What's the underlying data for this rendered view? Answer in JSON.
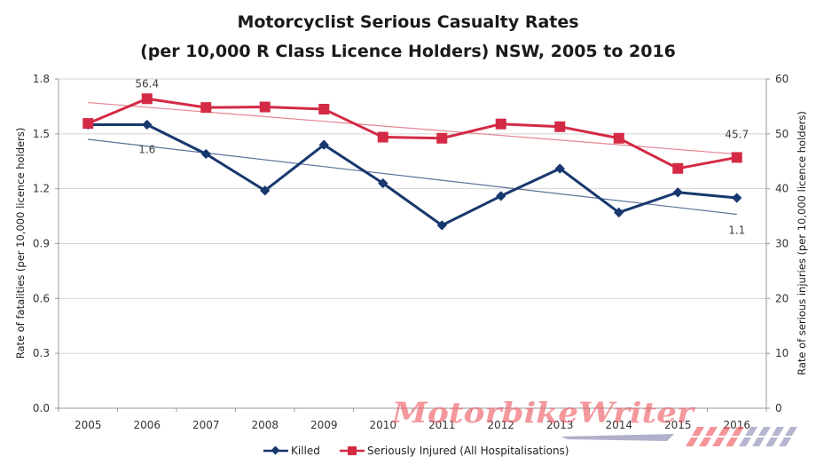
{
  "chart_data": {
    "type": "line",
    "title": "Motorcyclist Serious Casualty Rates",
    "subtitle": "(per 10,000 R Class Licence Holders) NSW, 2005 to 2016",
    "categories": [
      "2005",
      "2006",
      "2007",
      "2008",
      "2009",
      "2010",
      "2011",
      "2012",
      "2013",
      "2014",
      "2015",
      "2016"
    ],
    "y_left": {
      "label": "Rate of fatalities (per 10,000 licence holders)",
      "range": [
        0,
        1.8
      ],
      "ticks": [
        "0.0",
        "0.3",
        "0.6",
        "0.9",
        "1.2",
        "1.5",
        "1.8"
      ],
      "tick_values": [
        0,
        0.3,
        0.6,
        0.9,
        1.2,
        1.5,
        1.8
      ]
    },
    "y_right": {
      "label": "Rate of serious injuries (per 10,000 licence holders)",
      "range": [
        0,
        60
      ],
      "ticks": [
        "0",
        "10",
        "20",
        "30",
        "40",
        "50",
        "60"
      ],
      "tick_values": [
        0,
        10,
        20,
        30,
        40,
        50,
        60
      ]
    },
    "grid": true,
    "legend_position": "bottom",
    "series": [
      {
        "name": "Killed",
        "axis": "left",
        "color": "#17386e",
        "marker": "diamond",
        "values": [
          1.55,
          1.55,
          1.39,
          1.19,
          1.44,
          1.23,
          1.0,
          1.16,
          1.31,
          1.07,
          1.18,
          1.15
        ],
        "trendline": {
          "start": 1.47,
          "end": 1.06,
          "color": "#5a7299"
        }
      },
      {
        "name": "Seriously Injured (All Hospitalisations)",
        "axis": "right",
        "color": "#d42a45",
        "marker": "square",
        "values": [
          51.9,
          56.4,
          54.8,
          54.9,
          54.5,
          49.4,
          49.2,
          51.8,
          51.3,
          49.2,
          43.7,
          45.7
        ],
        "trendline": {
          "start": 55.7,
          "end": 46.3,
          "color": "#e58593"
        }
      }
    ],
    "annotations": [
      {
        "text": "56.4",
        "series": "Seriously Injured (All Hospitalisations)",
        "category": "2006",
        "placement": "above"
      },
      {
        "text": "1.6",
        "series": "Killed",
        "category": "2006",
        "placement": "below"
      },
      {
        "text": "45.7",
        "series": "Seriously Injured (All Hospitalisations)",
        "category": "2016",
        "placement": "above"
      },
      {
        "text": "1.1",
        "series": "Killed",
        "category": "2016",
        "placement": "below"
      }
    ]
  },
  "watermark": {
    "text": "MotorbikeWriter"
  }
}
